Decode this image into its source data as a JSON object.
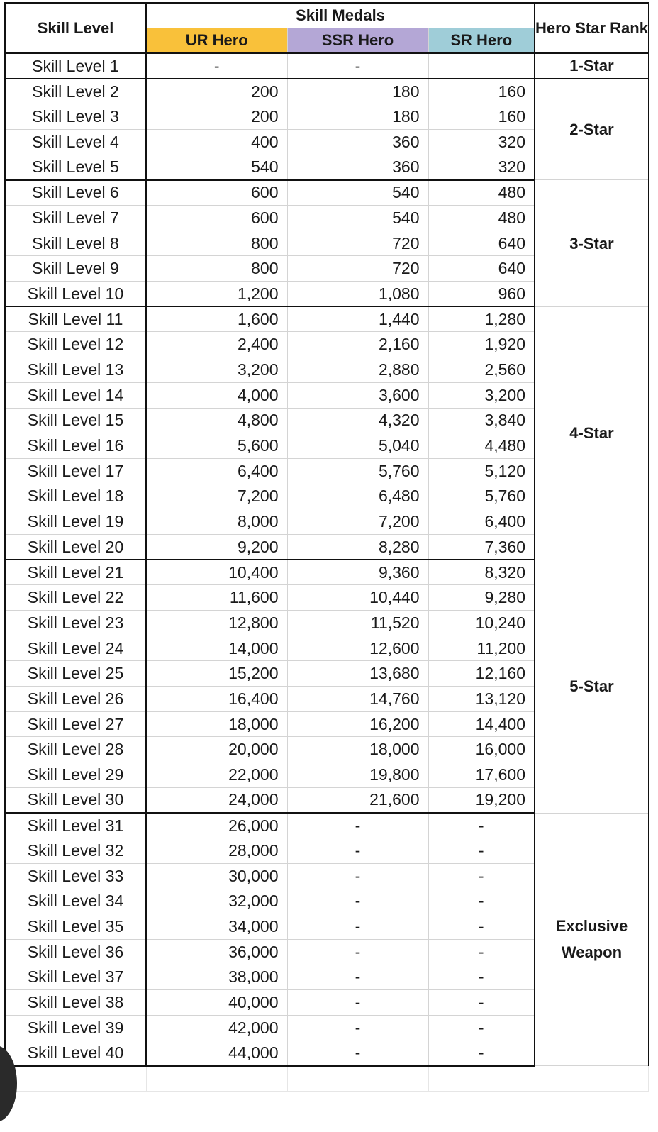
{
  "headers": {
    "skill_level": "Skill Level",
    "skill_medals": "Skill Medals",
    "ur": "UR Hero",
    "ssr": "SSR Hero",
    "sr": "SR Hero",
    "rank": "Hero Star Rank"
  },
  "colors": {
    "ur": "#f9c13a",
    "ssr": "#b4a7d6",
    "sr": "#9fcdd8"
  },
  "groups": [
    {
      "rank": "1-Star",
      "rows": [
        {
          "level": "Skill Level 1",
          "ur": "-",
          "ssr": "-",
          "sr": ""
        }
      ]
    },
    {
      "rank": "2-Star",
      "rows": [
        {
          "level": "Skill Level 2",
          "ur": "200",
          "ssr": "180",
          "sr": "160"
        },
        {
          "level": "Skill Level 3",
          "ur": "200",
          "ssr": "180",
          "sr": "160"
        },
        {
          "level": "Skill Level 4",
          "ur": "400",
          "ssr": "360",
          "sr": "320"
        },
        {
          "level": "Skill Level 5",
          "ur": "540",
          "ssr": "360",
          "sr": "320"
        }
      ]
    },
    {
      "rank": "3-Star",
      "rows": [
        {
          "level": "Skill Level 6",
          "ur": "600",
          "ssr": "540",
          "sr": "480"
        },
        {
          "level": "Skill Level 7",
          "ur": "600",
          "ssr": "540",
          "sr": "480"
        },
        {
          "level": "Skill Level 8",
          "ur": "800",
          "ssr": "720",
          "sr": "640"
        },
        {
          "level": "Skill Level 9",
          "ur": "800",
          "ssr": "720",
          "sr": "640"
        },
        {
          "level": "Skill Level 10",
          "ur": "1,200",
          "ssr": "1,080",
          "sr": "960"
        }
      ]
    },
    {
      "rank": "4-Star",
      "rows": [
        {
          "level": "Skill Level 11",
          "ur": "1,600",
          "ssr": "1,440",
          "sr": "1,280"
        },
        {
          "level": "Skill Level 12",
          "ur": "2,400",
          "ssr": "2,160",
          "sr": "1,920"
        },
        {
          "level": "Skill Level 13",
          "ur": "3,200",
          "ssr": "2,880",
          "sr": "2,560"
        },
        {
          "level": "Skill Level 14",
          "ur": "4,000",
          "ssr": "3,600",
          "sr": "3,200"
        },
        {
          "level": "Skill Level 15",
          "ur": "4,800",
          "ssr": "4,320",
          "sr": "3,840"
        },
        {
          "level": "Skill Level 16",
          "ur": "5,600",
          "ssr": "5,040",
          "sr": "4,480"
        },
        {
          "level": "Skill Level 17",
          "ur": "6,400",
          "ssr": "5,760",
          "sr": "5,120"
        },
        {
          "level": "Skill Level 18",
          "ur": "7,200",
          "ssr": "6,480",
          "sr": "5,760"
        },
        {
          "level": "Skill Level 19",
          "ur": "8,000",
          "ssr": "7,200",
          "sr": "6,400"
        },
        {
          "level": "Skill Level 20",
          "ur": "9,200",
          "ssr": "8,280",
          "sr": "7,360"
        }
      ]
    },
    {
      "rank": "5-Star",
      "rows": [
        {
          "level": "Skill Level 21",
          "ur": "10,400",
          "ssr": "9,360",
          "sr": "8,320"
        },
        {
          "level": "Skill Level 22",
          "ur": "11,600",
          "ssr": "10,440",
          "sr": "9,280"
        },
        {
          "level": "Skill Level 23",
          "ur": "12,800",
          "ssr": "11,520",
          "sr": "10,240"
        },
        {
          "level": "Skill Level 24",
          "ur": "14,000",
          "ssr": "12,600",
          "sr": "11,200"
        },
        {
          "level": "Skill Level 25",
          "ur": "15,200",
          "ssr": "13,680",
          "sr": "12,160"
        },
        {
          "level": "Skill Level 26",
          "ur": "16,400",
          "ssr": "14,760",
          "sr": "13,120"
        },
        {
          "level": "Skill Level 27",
          "ur": "18,000",
          "ssr": "16,200",
          "sr": "14,400"
        },
        {
          "level": "Skill Level 28",
          "ur": "20,000",
          "ssr": "18,000",
          "sr": "16,000"
        },
        {
          "level": "Skill Level 29",
          "ur": "22,000",
          "ssr": "19,800",
          "sr": "17,600"
        },
        {
          "level": "Skill Level 30",
          "ur": "24,000",
          "ssr": "21,600",
          "sr": "19,200"
        }
      ]
    },
    {
      "rank": "Exclusive Weapon",
      "rows": [
        {
          "level": "Skill Level 31",
          "ur": "26,000",
          "ssr": "-",
          "sr": "-"
        },
        {
          "level": "Skill Level 32",
          "ur": "28,000",
          "ssr": "-",
          "sr": "-"
        },
        {
          "level": "Skill Level 33",
          "ur": "30,000",
          "ssr": "-",
          "sr": "-"
        },
        {
          "level": "Skill Level 34",
          "ur": "32,000",
          "ssr": "-",
          "sr": "-"
        },
        {
          "level": "Skill Level 35",
          "ur": "34,000",
          "ssr": "-",
          "sr": "-"
        },
        {
          "level": "Skill Level 36",
          "ur": "36,000",
          "ssr": "-",
          "sr": "-"
        },
        {
          "level": "Skill Level 37",
          "ur": "38,000",
          "ssr": "-",
          "sr": "-"
        },
        {
          "level": "Skill Level 38",
          "ur": "40,000",
          "ssr": "-",
          "sr": "-"
        },
        {
          "level": "Skill Level 39",
          "ur": "42,000",
          "ssr": "-",
          "sr": "-"
        },
        {
          "level": "Skill Level 40",
          "ur": "44,000",
          "ssr": "-",
          "sr": "-"
        }
      ]
    }
  ]
}
